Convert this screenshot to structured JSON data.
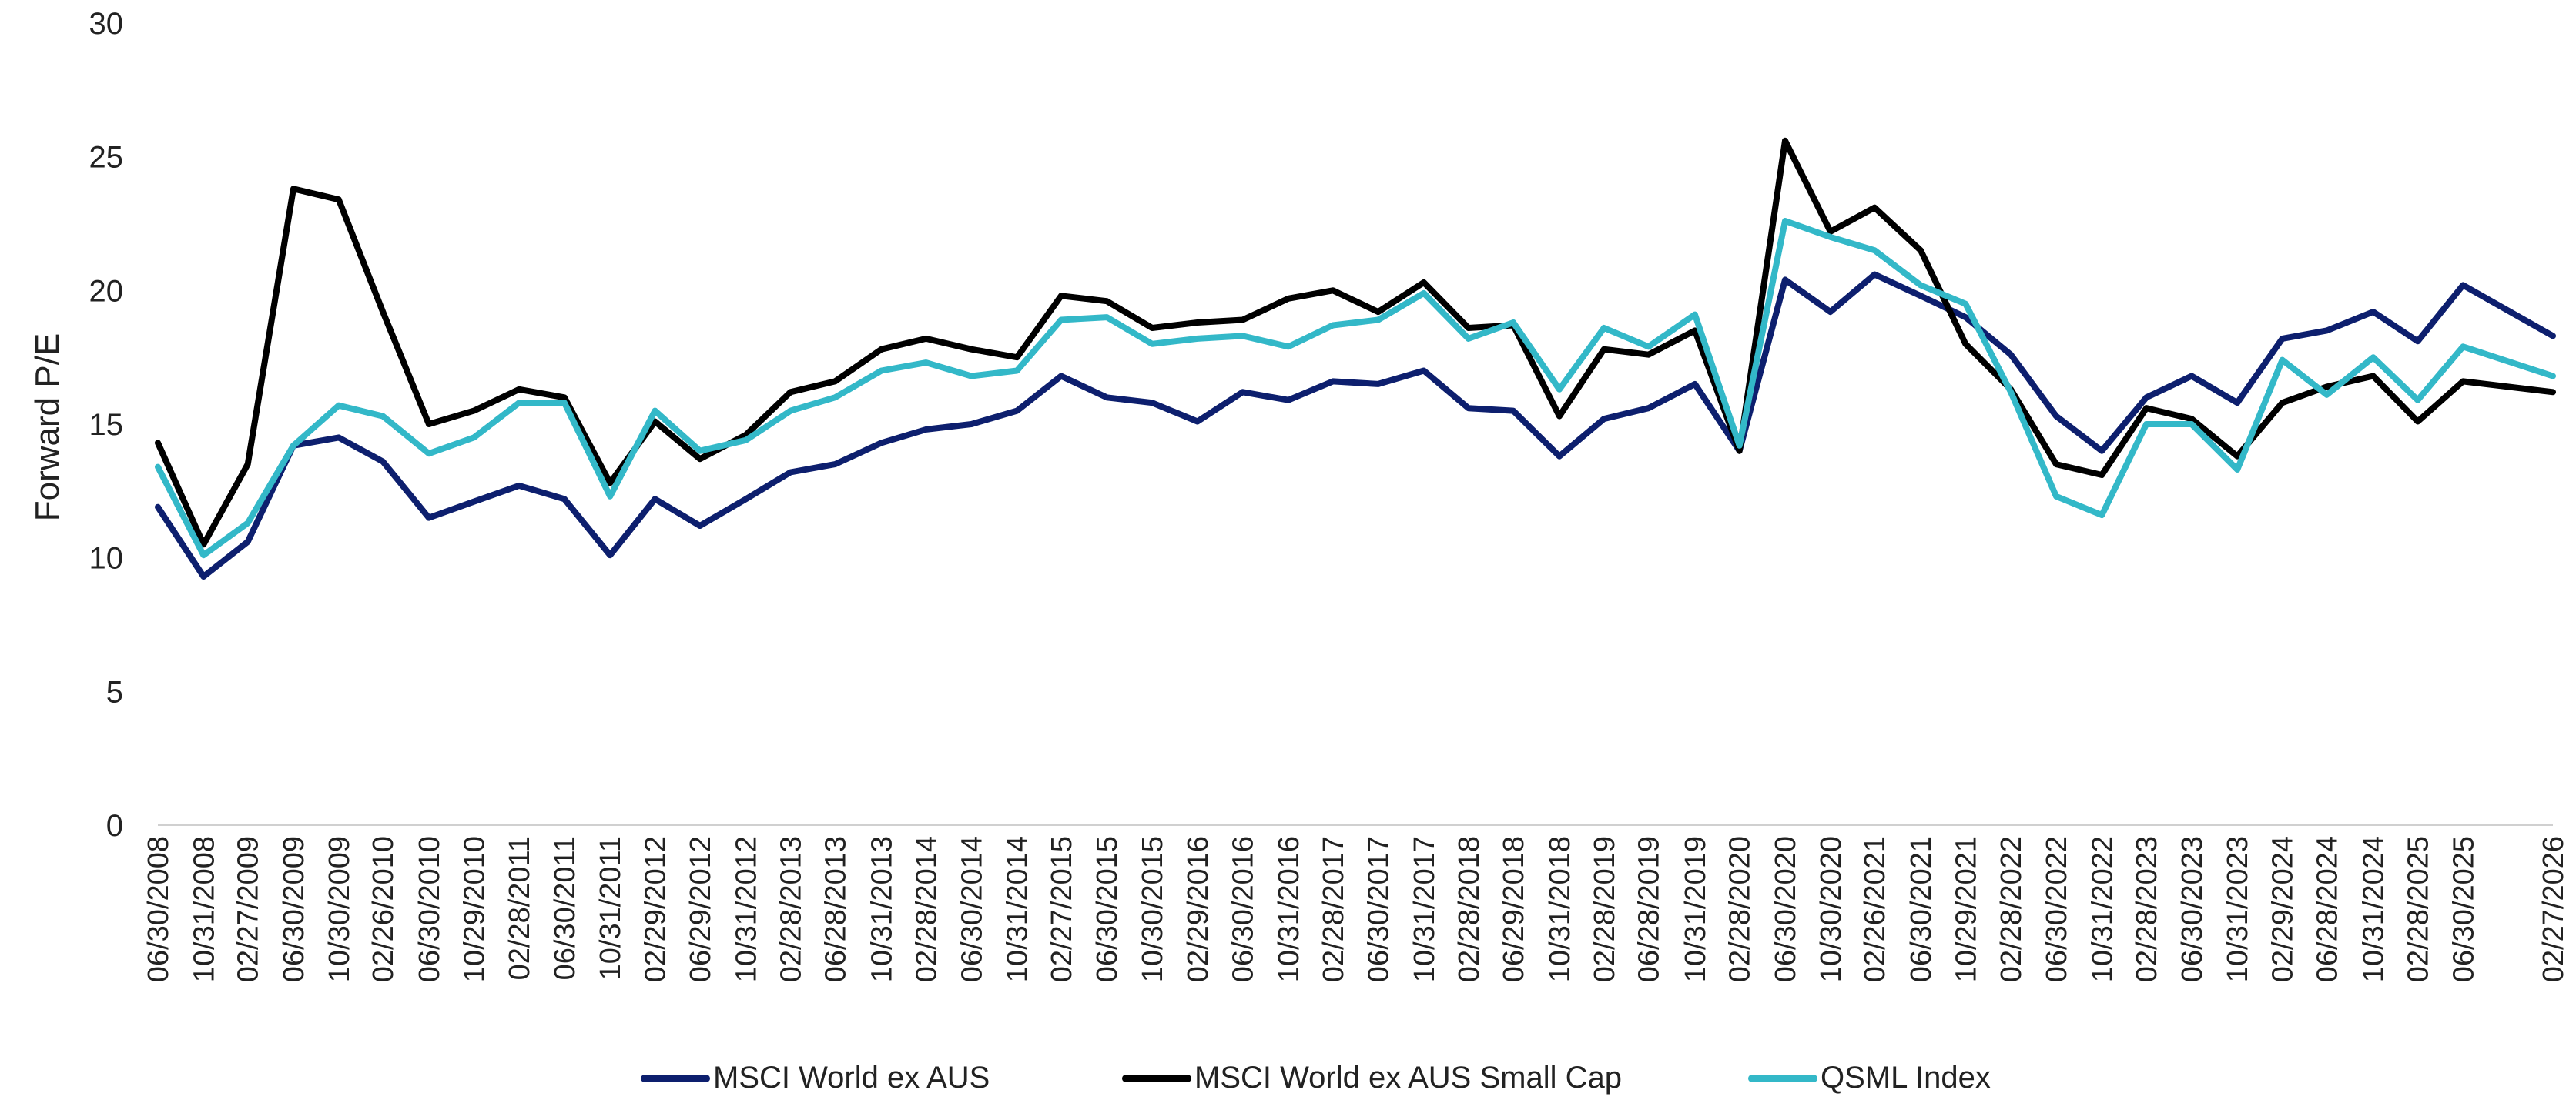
{
  "chart_data": {
    "type": "line",
    "ylabel": "Forward P/E",
    "ylim": [
      0,
      30
    ],
    "yticks": [
      0,
      5,
      10,
      15,
      20,
      25,
      30
    ],
    "grid": false,
    "legend_position": "bottom-center",
    "x_tick_labels": [
      "06/30/2008",
      "10/31/2008",
      "02/27/2009",
      "06/30/2009",
      "10/30/2009",
      "02/26/2010",
      "06/30/2010",
      "10/29/2010",
      "02/28/2011",
      "06/30/2011",
      "10/31/2011",
      "02/29/2012",
      "06/29/2012",
      "10/31/2012",
      "02/28/2013",
      "06/28/2013",
      "10/31/2013",
      "02/28/2014",
      "06/30/2014",
      "10/31/2014",
      "02/27/2015",
      "06/30/2015",
      "10/30/2015",
      "02/29/2016",
      "06/30/2016",
      "10/31/2016",
      "02/28/2017",
      "06/30/2017",
      "10/31/2017",
      "02/28/2018",
      "06/29/2018",
      "10/31/2018",
      "02/28/2019",
      "06/28/2019",
      "10/31/2019",
      "02/28/2020",
      "06/30/2020",
      "10/30/2020",
      "02/26/2021",
      "06/30/2021",
      "10/29/2021",
      "02/28/2022",
      "06/30/2022",
      "10/31/2022",
      "02/28/2023",
      "06/30/2023",
      "10/31/2023",
      "02/29/2024",
      "06/28/2024",
      "10/31/2024",
      "02/28/2025",
      "06/30/2025",
      "02/27/2026"
    ],
    "series": [
      {
        "name": "MSCI World ex AUS",
        "color": "#0d1f6e",
        "points": [
          [
            "06/30/2008",
            11.9
          ],
          [
            "10/31/2008",
            9.3
          ],
          [
            "02/27/2009",
            10.6
          ],
          [
            "06/30/2009",
            14.2
          ],
          [
            "10/30/2009",
            14.5
          ],
          [
            "02/26/2010",
            13.6
          ],
          [
            "06/30/2010",
            11.5
          ],
          [
            "10/29/2010",
            12.1
          ],
          [
            "02/28/2011",
            12.7
          ],
          [
            "06/30/2011",
            12.2
          ],
          [
            "10/31/2011",
            10.1
          ],
          [
            "02/29/2012",
            12.2
          ],
          [
            "06/29/2012",
            11.2
          ],
          [
            "10/31/2012",
            12.2
          ],
          [
            "02/28/2013",
            13.2
          ],
          [
            "06/28/2013",
            13.5
          ],
          [
            "10/31/2013",
            14.3
          ],
          [
            "02/28/2014",
            14.8
          ],
          [
            "06/30/2014",
            15.0
          ],
          [
            "10/31/2014",
            15.5
          ],
          [
            "02/27/2015",
            16.8
          ],
          [
            "06/30/2015",
            16.0
          ],
          [
            "10/30/2015",
            15.8
          ],
          [
            "02/29/2016",
            15.1
          ],
          [
            "06/30/2016",
            16.2
          ],
          [
            "10/31/2016",
            15.9
          ],
          [
            "02/28/2017",
            16.6
          ],
          [
            "06/30/2017",
            16.5
          ],
          [
            "10/31/2017",
            17.0
          ],
          [
            "02/28/2018",
            15.6
          ],
          [
            "06/29/2018",
            15.5
          ],
          [
            "10/31/2018",
            13.8
          ],
          [
            "02/28/2019",
            15.2
          ],
          [
            "06/28/2019",
            15.6
          ],
          [
            "10/31/2019",
            16.5
          ],
          [
            "02/28/2020",
            14.0
          ],
          [
            "06/30/2020",
            20.4
          ],
          [
            "10/30/2020",
            19.2
          ],
          [
            "02/26/2021",
            20.6
          ],
          [
            "06/30/2021",
            19.8
          ],
          [
            "10/29/2021",
            19.0
          ],
          [
            "02/28/2022",
            17.6
          ],
          [
            "06/30/2022",
            15.3
          ],
          [
            "10/31/2022",
            14.0
          ],
          [
            "02/28/2023",
            16.0
          ],
          [
            "06/30/2023",
            16.8
          ],
          [
            "10/31/2023",
            15.8
          ],
          [
            "02/29/2024",
            18.2
          ],
          [
            "06/28/2024",
            18.5
          ],
          [
            "10/31/2024",
            19.2
          ],
          [
            "02/28/2025",
            18.1
          ],
          [
            "06/30/2025",
            20.2
          ],
          [
            "02/27/2026",
            18.3
          ]
        ]
      },
      {
        "name": "MSCI World ex AUS Small Cap",
        "color": "#000000",
        "points": [
          [
            "06/30/2008",
            14.3
          ],
          [
            "10/31/2008",
            10.5
          ],
          [
            "02/27/2009",
            13.5
          ],
          [
            "06/30/2009",
            23.8
          ],
          [
            "10/30/2009",
            23.4
          ],
          [
            "02/26/2010",
            19.2
          ],
          [
            "06/30/2010",
            15.0
          ],
          [
            "10/29/2010",
            15.5
          ],
          [
            "02/28/2011",
            16.3
          ],
          [
            "06/30/2011",
            16.0
          ],
          [
            "10/31/2011",
            12.8
          ],
          [
            "02/29/2012",
            15.1
          ],
          [
            "06/29/2012",
            13.7
          ],
          [
            "10/31/2012",
            14.6
          ],
          [
            "02/28/2013",
            16.2
          ],
          [
            "06/28/2013",
            16.6
          ],
          [
            "10/31/2013",
            17.8
          ],
          [
            "02/28/2014",
            18.2
          ],
          [
            "06/30/2014",
            17.8
          ],
          [
            "10/31/2014",
            17.5
          ],
          [
            "02/27/2015",
            19.8
          ],
          [
            "06/30/2015",
            19.6
          ],
          [
            "10/30/2015",
            18.6
          ],
          [
            "02/29/2016",
            18.8
          ],
          [
            "06/30/2016",
            18.9
          ],
          [
            "10/31/2016",
            19.7
          ],
          [
            "02/28/2017",
            20.0
          ],
          [
            "06/30/2017",
            19.2
          ],
          [
            "10/31/2017",
            20.3
          ],
          [
            "02/28/2018",
            18.6
          ],
          [
            "06/29/2018",
            18.7
          ],
          [
            "10/31/2018",
            15.3
          ],
          [
            "02/28/2019",
            17.8
          ],
          [
            "06/28/2019",
            17.6
          ],
          [
            "10/31/2019",
            18.5
          ],
          [
            "02/28/2020",
            14.0
          ],
          [
            "06/30/2020",
            25.6
          ],
          [
            "10/30/2020",
            22.2
          ],
          [
            "02/26/2021",
            23.1
          ],
          [
            "06/30/2021",
            21.5
          ],
          [
            "10/29/2021",
            18.0
          ],
          [
            "02/28/2022",
            16.3
          ],
          [
            "06/30/2022",
            13.5
          ],
          [
            "10/31/2022",
            13.1
          ],
          [
            "02/28/2023",
            15.6
          ],
          [
            "06/30/2023",
            15.2
          ],
          [
            "10/31/2023",
            13.8
          ],
          [
            "02/29/2024",
            15.8
          ],
          [
            "06/28/2024",
            16.4
          ],
          [
            "10/31/2024",
            16.8
          ],
          [
            "02/28/2025",
            15.1
          ],
          [
            "06/30/2025",
            16.6
          ],
          [
            "02/27/2026",
            16.2
          ]
        ]
      },
      {
        "name": "QSML Index",
        "color": "#33b8c8",
        "points": [
          [
            "06/30/2008",
            13.4
          ],
          [
            "10/31/2008",
            10.1
          ],
          [
            "02/27/2009",
            11.3
          ],
          [
            "06/30/2009",
            14.2
          ],
          [
            "10/30/2009",
            15.7
          ],
          [
            "02/26/2010",
            15.3
          ],
          [
            "06/30/2010",
            13.9
          ],
          [
            "10/29/2010",
            14.5
          ],
          [
            "02/28/2011",
            15.8
          ],
          [
            "06/30/2011",
            15.8
          ],
          [
            "10/31/2011",
            12.3
          ],
          [
            "02/29/2012",
            15.5
          ],
          [
            "06/29/2012",
            14.0
          ],
          [
            "10/31/2012",
            14.4
          ],
          [
            "02/28/2013",
            15.5
          ],
          [
            "06/28/2013",
            16.0
          ],
          [
            "10/31/2013",
            17.0
          ],
          [
            "02/28/2014",
            17.3
          ],
          [
            "06/30/2014",
            16.8
          ],
          [
            "10/31/2014",
            17.0
          ],
          [
            "02/27/2015",
            18.9
          ],
          [
            "06/30/2015",
            19.0
          ],
          [
            "10/30/2015",
            18.0
          ],
          [
            "02/29/2016",
            18.2
          ],
          [
            "06/30/2016",
            18.3
          ],
          [
            "10/31/2016",
            17.9
          ],
          [
            "02/28/2017",
            18.7
          ],
          [
            "06/30/2017",
            18.9
          ],
          [
            "10/31/2017",
            19.9
          ],
          [
            "02/28/2018",
            18.2
          ],
          [
            "06/29/2018",
            18.8
          ],
          [
            "10/31/2018",
            16.3
          ],
          [
            "02/28/2019",
            18.6
          ],
          [
            "06/28/2019",
            17.9
          ],
          [
            "10/31/2019",
            19.1
          ],
          [
            "02/28/2020",
            14.2
          ],
          [
            "06/30/2020",
            22.6
          ],
          [
            "10/30/2020",
            22.0
          ],
          [
            "02/26/2021",
            21.5
          ],
          [
            "06/30/2021",
            20.2
          ],
          [
            "10/29/2021",
            19.5
          ],
          [
            "02/28/2022",
            16.2
          ],
          [
            "06/30/2022",
            12.3
          ],
          [
            "10/31/2022",
            11.6
          ],
          [
            "02/28/2023",
            15.0
          ],
          [
            "06/30/2023",
            15.0
          ],
          [
            "10/31/2023",
            13.3
          ],
          [
            "02/29/2024",
            17.4
          ],
          [
            "06/28/2024",
            16.1
          ],
          [
            "10/31/2024",
            17.5
          ],
          [
            "02/28/2025",
            15.9
          ],
          [
            "06/30/2025",
            17.9
          ],
          [
            "02/27/2026",
            16.8
          ]
        ]
      }
    ]
  }
}
